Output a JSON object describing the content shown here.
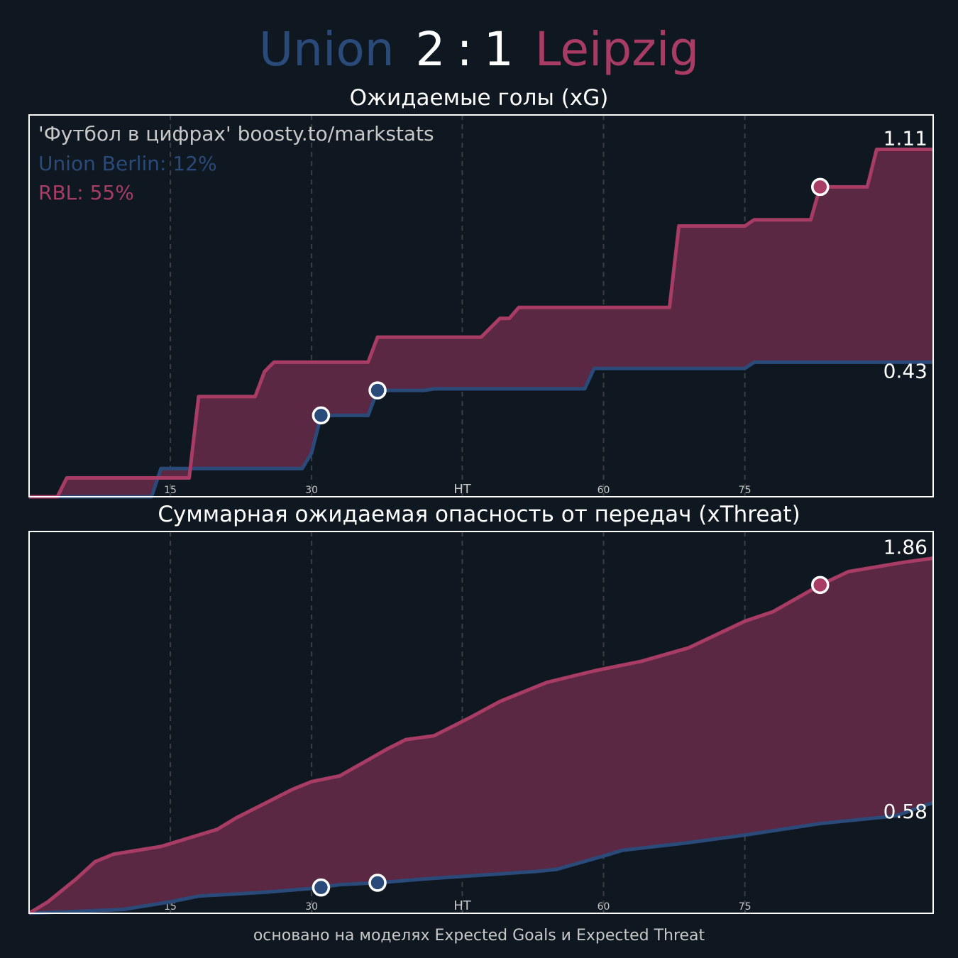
{
  "header": {
    "home_team": "Union",
    "home_score": "2",
    "separator": ":",
    "away_score": "1",
    "away_team": "Leipzig"
  },
  "colors": {
    "background": "#0f1820",
    "home": "#2a4a7a",
    "away": "#a83c64",
    "fill": "#5a2842"
  },
  "charts": {
    "xg": {
      "title": "Ожидаемые голы (xG)",
      "note": "'Футбол в цифрах' boosty.to/markstats",
      "home_prob": "Union Berlin: 12%",
      "away_prob": "RBL: 55%",
      "home_end_label": "0.43",
      "away_end_label": "1.11"
    },
    "xt": {
      "title": "Суммарная ожидаемая опасность от передач (xThreat)",
      "home_end_label": "0.58",
      "away_end_label": "1.86"
    }
  },
  "footer": "основано на моделях Expected Goals и Expected Threat",
  "chart_data": [
    {
      "type": "line",
      "title": "Ожидаемые голы (xG)",
      "xlim": [
        0,
        96
      ],
      "ylim": [
        0,
        1.22
      ],
      "grid": "vertical dashed",
      "x_ticks": [
        {
          "x": 15,
          "label": "15"
        },
        {
          "x": 30,
          "label": "30"
        },
        {
          "x": 46,
          "label": "HT"
        },
        {
          "x": 61,
          "label": "60"
        },
        {
          "x": 76,
          "label": "75"
        }
      ],
      "series": [
        {
          "name": "Union Berlin",
          "color": "#2a4a7a",
          "points": [
            [
              0,
              0
            ],
            [
              13,
              0
            ],
            [
              14,
              0.09
            ],
            [
              29,
              0.09
            ],
            [
              30,
              0.14
            ],
            [
              31,
              0.26
            ],
            [
              36,
              0.26
            ],
            [
              37,
              0.34
            ],
            [
              42,
              0.34
            ],
            [
              43,
              0.345
            ],
            [
              59,
              0.345
            ],
            [
              60,
              0.41
            ],
            [
              76,
              0.41
            ],
            [
              77,
              0.43
            ],
            [
              96,
              0.43
            ]
          ],
          "goals": [
            [
              31,
              0.26
            ],
            [
              37,
              0.34
            ]
          ]
        },
        {
          "name": "RBL",
          "color": "#a83c64",
          "points": [
            [
              0,
              0
            ],
            [
              3,
              0
            ],
            [
              4,
              0.06
            ],
            [
              17,
              0.06
            ],
            [
              18,
              0.32
            ],
            [
              24,
              0.32
            ],
            [
              25,
              0.4
            ],
            [
              26,
              0.43
            ],
            [
              36,
              0.43
            ],
            [
              37,
              0.51
            ],
            [
              48,
              0.51
            ],
            [
              49,
              0.54
            ],
            [
              50,
              0.57
            ],
            [
              51,
              0.57
            ],
            [
              52,
              0.605
            ],
            [
              68,
              0.605
            ],
            [
              69,
              0.865
            ],
            [
              76,
              0.865
            ],
            [
              77,
              0.885
            ],
            [
              83,
              0.885
            ],
            [
              84,
              0.99
            ],
            [
              89,
              0.99
            ],
            [
              90,
              1.11
            ],
            [
              96,
              1.11
            ]
          ],
          "goals": [
            [
              84,
              0.99
            ]
          ]
        }
      ]
    },
    {
      "type": "line",
      "title": "Суммарная ожидаемая опасность от передач (xThreat)",
      "xlim": [
        0,
        96
      ],
      "ylim": [
        0,
        2.0
      ],
      "grid": "vertical dashed",
      "x_ticks": [
        {
          "x": 15,
          "label": "15"
        },
        {
          "x": 30,
          "label": "30"
        },
        {
          "x": 46,
          "label": "HT"
        },
        {
          "x": 61,
          "label": "60"
        },
        {
          "x": 76,
          "label": "75"
        }
      ],
      "series": [
        {
          "name": "Union Berlin",
          "color": "#2a4a7a",
          "points": [
            [
              0,
              0
            ],
            [
              5,
              0.01
            ],
            [
              10,
              0.02
            ],
            [
              15,
              0.06
            ],
            [
              18,
              0.09
            ],
            [
              25,
              0.11
            ],
            [
              30,
              0.13
            ],
            [
              33,
              0.15
            ],
            [
              37,
              0.16
            ],
            [
              42,
              0.18
            ],
            [
              48,
              0.2
            ],
            [
              54,
              0.22
            ],
            [
              56,
              0.23
            ],
            [
              61,
              0.3
            ],
            [
              63,
              0.33
            ],
            [
              70,
              0.37
            ],
            [
              76,
              0.41
            ],
            [
              80,
              0.44
            ],
            [
              84,
              0.47
            ],
            [
              88,
              0.49
            ],
            [
              92,
              0.51
            ],
            [
              96,
              0.58
            ]
          ],
          "goals": [
            [
              31,
              0.135
            ],
            [
              37,
              0.16
            ]
          ]
        },
        {
          "name": "RBL",
          "color": "#a83c64",
          "points": [
            [
              0,
              0
            ],
            [
              2,
              0.06
            ],
            [
              5,
              0.18
            ],
            [
              7,
              0.27
            ],
            [
              9,
              0.31
            ],
            [
              14,
              0.35
            ],
            [
              20,
              0.44
            ],
            [
              22,
              0.5
            ],
            [
              28,
              0.65
            ],
            [
              30,
              0.69
            ],
            [
              33,
              0.72
            ],
            [
              38,
              0.86
            ],
            [
              40,
              0.91
            ],
            [
              43,
              0.93
            ],
            [
              47,
              1.03
            ],
            [
              50,
              1.11
            ],
            [
              55,
              1.21
            ],
            [
              60,
              1.27
            ],
            [
              65,
              1.32
            ],
            [
              70,
              1.39
            ],
            [
              76,
              1.53
            ],
            [
              79,
              1.58
            ],
            [
              84,
              1.72
            ],
            [
              87,
              1.79
            ],
            [
              93,
              1.84
            ],
            [
              96,
              1.86
            ]
          ],
          "goals": [
            [
              84,
              1.72
            ]
          ]
        }
      ]
    }
  ]
}
